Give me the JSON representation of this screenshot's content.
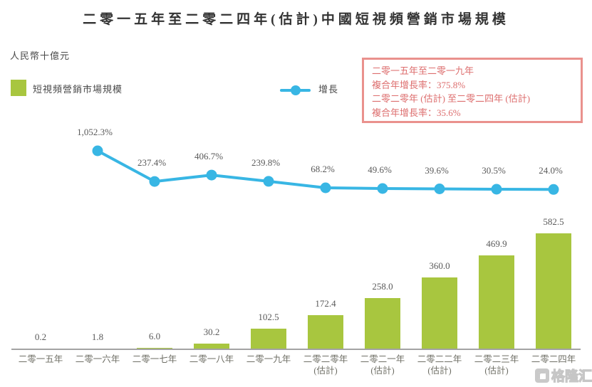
{
  "title": "二零一五年至二零二四年(估計)中國短視頻營銷市場規模",
  "unit_label": "人民幣十億元",
  "legend": {
    "bar_series_label": "短視頻營銷市場規模",
    "line_series_label": "增長"
  },
  "cagr_box": {
    "lines": [
      "二零一五年至二零一九年",
      "複合年增長率：375.8%",
      "二零二零年 (估計) 至二零二四年 (估計)",
      "複合年增長率：35.6%"
    ]
  },
  "watermark": "格隆汇",
  "colors": {
    "bar": "#a8c63f",
    "line": "#38b6e4",
    "box_border": "#ea918d",
    "box_text": "#dd6e6e",
    "value_label": "#5a5a5a",
    "axis_label": "#6f6f66"
  },
  "chart_data": {
    "type": "bar",
    "subtype": "combo-bar-line",
    "title": "二零一五年至二零二四年(估計)中國短視頻營銷市場規模",
    "ylabel": "人民幣十億元",
    "grid": false,
    "legend_position": "top-left",
    "categories": [
      [
        "二零一五年"
      ],
      [
        "二零一六年"
      ],
      [
        "二零一七年"
      ],
      [
        "二零一八年"
      ],
      [
        "二零一九年"
      ],
      [
        "二零二零年",
        "(估計)"
      ],
      [
        "二零二一年",
        "(估計)"
      ],
      [
        "二零二二年",
        "(估計)"
      ],
      [
        "二零二三年",
        "(估計)"
      ],
      [
        "二零二四年",
        "(估計)"
      ]
    ],
    "series": [
      {
        "name": "短視頻營銷市場規模",
        "type": "bar",
        "unit": "人民幣十億元",
        "values": [
          0.2,
          1.8,
          6.0,
          30.2,
          102.5,
          172.4,
          258.0,
          360.0,
          469.9,
          582.5
        ],
        "labels": [
          "0.2",
          "1.8",
          "6.0",
          "30.2",
          "102.5",
          "172.4",
          "258.0",
          "360.0",
          "469.9",
          "582.5"
        ]
      },
      {
        "name": "增長",
        "type": "line",
        "unit": "%",
        "values": [
          null,
          1052.3,
          237.4,
          406.7,
          239.8,
          68.2,
          49.6,
          39.6,
          30.5,
          24.0
        ],
        "labels": [
          null,
          "1,052.3%",
          "237.4%",
          "406.7%",
          "239.8%",
          "68.2%",
          "49.6%",
          "39.6%",
          "30.5%",
          "24.0%"
        ]
      }
    ],
    "annotations": [
      "二零一五年至二零一九年 複合年增長率：375.8%",
      "二零二零年 (估計) 至二零二四年 (估計) 複合年增長率：35.6%"
    ]
  }
}
